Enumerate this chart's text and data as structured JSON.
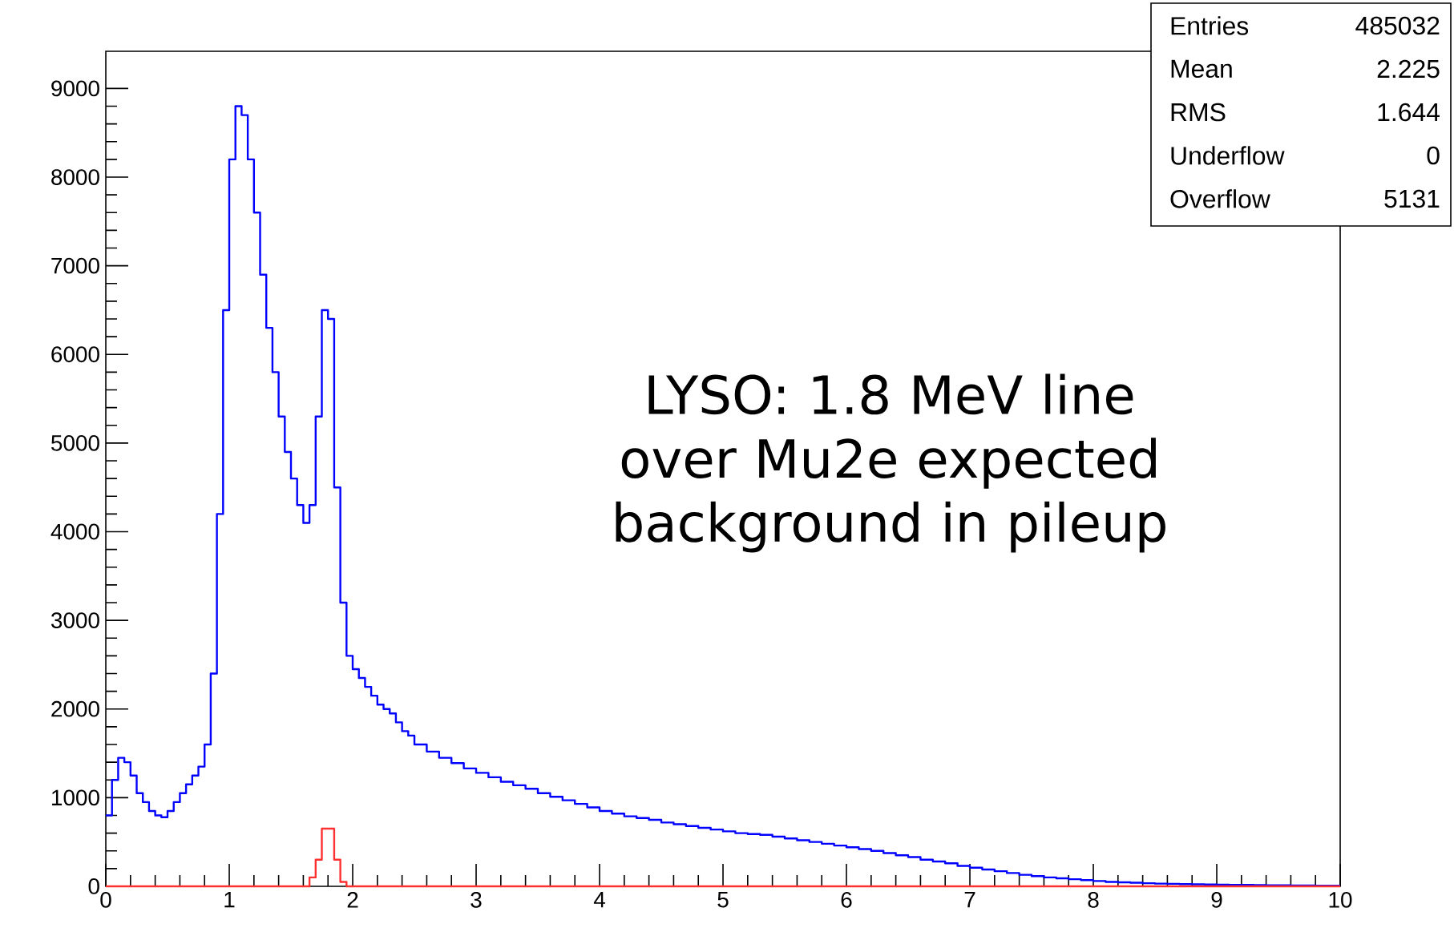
{
  "chart_data": {
    "type": "histogram",
    "bins": [
      0,
      0.05,
      0.1,
      0.15,
      0.2,
      0.25,
      0.3,
      0.35,
      0.4,
      0.45,
      0.5,
      0.55,
      0.6,
      0.65,
      0.7,
      0.75,
      0.8,
      0.85,
      0.9,
      0.95,
      1.0,
      1.05,
      1.1,
      1.15,
      1.2,
      1.25,
      1.3,
      1.35,
      1.4,
      1.45,
      1.5,
      1.55,
      1.6,
      1.65,
      1.7,
      1.75,
      1.8,
      1.85,
      1.9,
      1.95,
      2.0,
      2.05,
      2.1,
      2.15,
      2.2,
      2.25,
      2.3,
      2.35,
      2.4,
      2.45,
      2.5,
      2.6,
      2.7,
      2.8,
      2.9,
      3.0,
      3.1,
      3.2,
      3.3,
      3.4,
      3.5,
      3.6,
      3.7,
      3.8,
      3.9,
      4.0,
      4.1,
      4.2,
      4.3,
      4.4,
      4.5,
      4.6,
      4.7,
      4.8,
      4.9,
      5.0,
      5.1,
      5.2,
      5.3,
      5.4,
      5.5,
      5.6,
      5.7,
      5.8,
      5.9,
      6.0,
      6.1,
      6.2,
      6.3,
      6.4,
      6.5,
      6.6,
      6.7,
      6.8,
      6.9,
      7.0,
      7.1,
      7.2,
      7.3,
      7.4,
      7.5,
      7.6,
      7.7,
      7.8,
      7.9,
      8.0,
      8.1,
      8.2,
      8.3,
      8.4,
      8.5,
      8.6,
      8.7,
      8.8,
      8.9,
      9.0,
      9.1,
      9.2,
      9.3,
      9.4,
      9.5,
      9.6,
      9.7,
      9.8,
      9.9,
      10.0
    ],
    "series": [
      {
        "color": "#0000ff",
        "values": [
          800,
          1200,
          1450,
          1400,
          1250,
          1050,
          950,
          850,
          800,
          780,
          850,
          950,
          1050,
          1150,
          1250,
          1350,
          1600,
          2400,
          4200,
          6500,
          8200,
          8800,
          8700,
          8200,
          7600,
          6900,
          6300,
          5800,
          5300,
          4900,
          4600,
          4300,
          4100,
          4300,
          5300,
          6500,
          6400,
          4500,
          3200,
          2600,
          2450,
          2350,
          2250,
          2150,
          2050,
          2000,
          1950,
          1850,
          1750,
          1700,
          1600,
          1520,
          1450,
          1390,
          1330,
          1280,
          1230,
          1180,
          1140,
          1100,
          1050,
          1010,
          970,
          930,
          890,
          850,
          820,
          790,
          770,
          750,
          720,
          700,
          680,
          660,
          640,
          620,
          600,
          590,
          580,
          560,
          540,
          520,
          500,
          480,
          460,
          440,
          420,
          400,
          375,
          350,
          330,
          300,
          280,
          260,
          230,
          210,
          190,
          170,
          150,
          130,
          115,
          100,
          90,
          80,
          70,
          60,
          50,
          45,
          40,
          35,
          30,
          28,
          25,
          22,
          20,
          18,
          16,
          15,
          14,
          12,
          11,
          10,
          9,
          8,
          8
        ]
      },
      {
        "color": "#ff3030",
        "values": [
          0,
          0,
          0,
          0,
          0,
          0,
          0,
          0,
          0,
          0,
          0,
          0,
          0,
          0,
          0,
          0,
          0,
          0,
          0,
          0,
          0,
          0,
          0,
          0,
          0,
          0,
          0,
          0,
          0,
          0,
          0,
          0,
          0,
          100,
          300,
          650,
          650,
          300,
          50,
          0,
          0,
          0,
          0,
          0,
          0,
          0,
          0,
          0,
          0,
          0,
          0,
          0,
          0,
          0,
          0,
          0,
          0,
          0,
          0,
          0,
          0,
          0,
          0,
          0,
          0,
          0,
          0,
          0,
          0,
          0,
          0,
          0,
          0,
          0,
          0,
          0,
          0,
          0,
          0,
          0,
          0,
          0,
          0,
          0,
          0,
          0,
          0,
          0,
          0,
          0,
          0,
          0,
          0,
          0,
          0,
          0,
          0,
          0,
          0,
          0,
          0,
          0,
          0,
          0,
          0,
          0,
          0,
          0,
          0,
          0,
          0,
          0,
          0,
          0,
          0,
          0,
          0,
          0,
          0,
          0,
          0,
          0,
          0,
          0,
          0
        ]
      }
    ],
    "xlim": [
      0,
      10
    ],
    "xticks": [
      0,
      1,
      2,
      3,
      4,
      5,
      6,
      7,
      8,
      9,
      10
    ],
    "ylim": [
      0,
      9420
    ],
    "yticks": [
      0,
      1000,
      2000,
      3000,
      4000,
      5000,
      6000,
      7000,
      8000,
      9000
    ],
    "annotations": [
      "LYSO: 1.8 MeV line over Mu2e expected background in pileup",
      "Entries",
      "485032",
      "Mean",
      "2.225",
      "RMS",
      "1.644",
      "Underflow",
      "0",
      "Overflow",
      "5131"
    ]
  }
}
